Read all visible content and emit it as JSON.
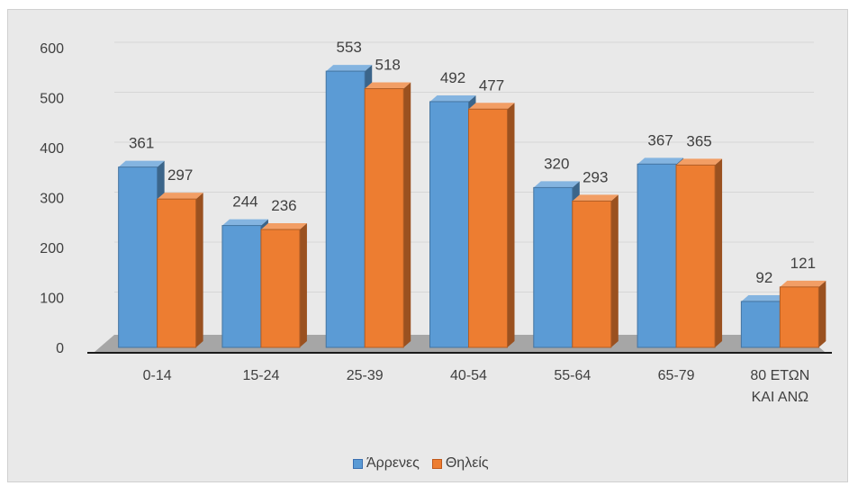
{
  "chart_data": {
    "type": "bar",
    "title": "",
    "xlabel": "",
    "ylabel": "",
    "categories": [
      "0-14",
      "15-24",
      "25-39",
      "40-54",
      "55-64",
      "65-79",
      "80 ΕΤΩΝ ΚΑΙ ΑΝΩ"
    ],
    "series": [
      {
        "name": "Άρρενες",
        "values": [
          361,
          244,
          553,
          492,
          320,
          367,
          92
        ],
        "color": "#5b9bd5"
      },
      {
        "name": "Θηλείς",
        "values": [
          297,
          236,
          518,
          477,
          293,
          365,
          121
        ],
        "color": "#ed7d31"
      }
    ],
    "yticks": [
      "0",
      "100",
      "200",
      "300",
      "400",
      "500",
      "600"
    ],
    "ylim": [
      0,
      600
    ],
    "grid": true,
    "legend": "bottom",
    "style": "3d-clustered-column",
    "floor_color": "#a6a6a6"
  }
}
